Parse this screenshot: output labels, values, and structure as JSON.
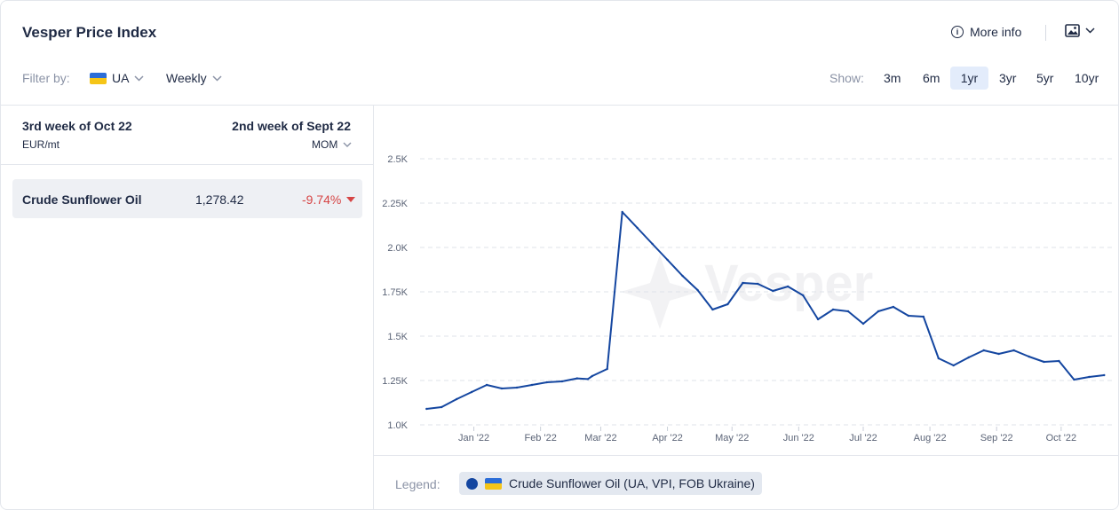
{
  "header": {
    "title": "Vesper Price Index",
    "more_info": "More info"
  },
  "filters": {
    "label": "Filter by:",
    "country": "UA",
    "frequency": "Weekly"
  },
  "show": {
    "label": "Show:",
    "ranges": [
      "3m",
      "6m",
      "1yr",
      "3yr",
      "5yr",
      "10yr"
    ],
    "active": "1yr"
  },
  "table": {
    "current_period": "3rd week of Oct 22",
    "unit": "EUR/mt",
    "compare_period": "2nd week of Sept 22",
    "compare_mode": "MOM",
    "rows": [
      {
        "name": "Crude Sunflower Oil",
        "value": "1,278.42",
        "change": "-9.74%"
      }
    ]
  },
  "watermark": "Vesper",
  "legend": {
    "label": "Legend:",
    "series_name": "Crude Sunflower Oil (UA, VPI, FOB Ukraine)"
  },
  "colors": {
    "series": "#1446a0",
    "negative": "#d64545",
    "accent_active": "#e3ecfb"
  },
  "chart_data": {
    "type": "line",
    "x_ticks": [
      "Jan '22",
      "Feb '22",
      "Mar '22",
      "Apr '22",
      "May '22",
      "Jun '22",
      "Jul '22",
      "Aug '22",
      "Sep '22",
      "Oct '22"
    ],
    "y_ticks": [
      "1.0K",
      "1.25K",
      "1.5K",
      "1.75K",
      "2.0K",
      "2.25K",
      "2.5K"
    ],
    "ylim": [
      1000,
      2500
    ],
    "grid": true,
    "series": [
      {
        "name": "Crude Sunflower Oil (UA, VPI, FOB Ukraine)",
        "x": [
          "2021-12-10",
          "2021-12-17",
          "2021-12-24",
          "2021-12-31",
          "2022-01-07",
          "2022-01-14",
          "2022-01-21",
          "2022-01-28",
          "2022-02-04",
          "2022-02-11",
          "2022-02-18",
          "2022-02-23",
          "2022-02-25",
          "2022-03-04",
          "2022-03-11",
          "2022-03-18",
          "2022-03-25",
          "2022-04-01",
          "2022-04-08",
          "2022-04-15",
          "2022-04-22",
          "2022-04-29",
          "2022-05-06",
          "2022-05-13",
          "2022-05-20",
          "2022-05-27",
          "2022-06-03",
          "2022-06-10",
          "2022-06-17",
          "2022-06-24",
          "2022-07-01",
          "2022-07-08",
          "2022-07-15",
          "2022-07-22",
          "2022-07-29",
          "2022-08-05",
          "2022-08-12",
          "2022-08-19",
          "2022-08-26",
          "2022-09-02",
          "2022-09-09",
          "2022-09-16",
          "2022-09-23",
          "2022-09-30",
          "2022-10-07",
          "2022-10-14",
          "2022-10-21"
        ],
        "values": [
          1090,
          1100,
          1145,
          1185,
          1225,
          1205,
          1210,
          1225,
          1240,
          1245,
          1262,
          1258,
          1275,
          1315,
          2200,
          2110,
          2020,
          1930,
          1840,
          1760,
          1650,
          1680,
          1800,
          1795,
          1755,
          1780,
          1730,
          1595,
          1650,
          1640,
          1570,
          1640,
          1665,
          1615,
          1610,
          1375,
          1335,
          1380,
          1420,
          1400,
          1420,
          1385,
          1355,
          1360,
          1255,
          1270,
          1280
        ]
      }
    ]
  }
}
